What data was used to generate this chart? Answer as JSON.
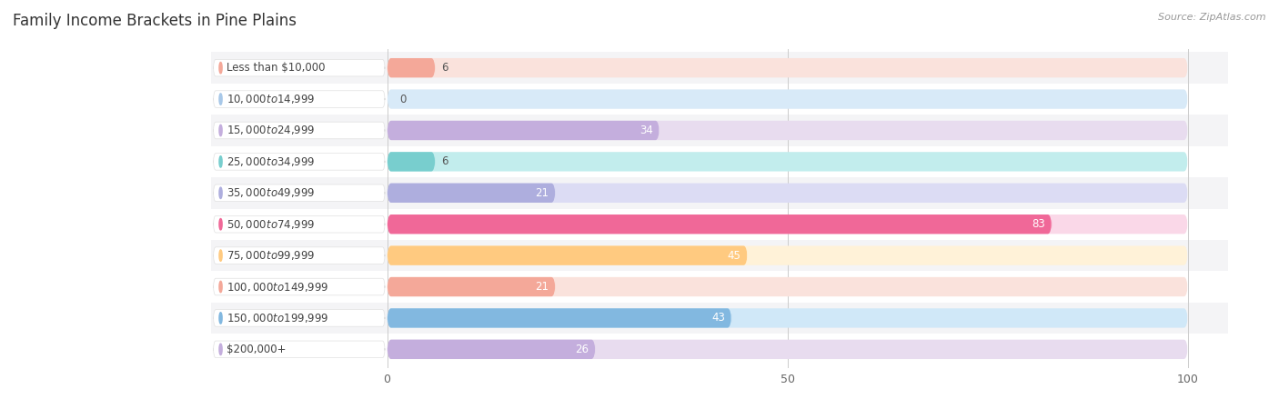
{
  "title": "Family Income Brackets in Pine Plains",
  "source": "Source: ZipAtlas.com",
  "categories": [
    "Less than $10,000",
    "$10,000 to $14,999",
    "$15,000 to $24,999",
    "$25,000 to $34,999",
    "$35,000 to $49,999",
    "$50,000 to $74,999",
    "$75,000 to $99,999",
    "$100,000 to $149,999",
    "$150,000 to $199,999",
    "$200,000+"
  ],
  "values": [
    6,
    0,
    34,
    6,
    21,
    83,
    45,
    21,
    43,
    26
  ],
  "bar_colors": [
    "#F4A899",
    "#A8C8E8",
    "#C4AEDD",
    "#78CECE",
    "#AEAEDE",
    "#F06898",
    "#FFCA80",
    "#F4A899",
    "#82B8E0",
    "#C4AEDD"
  ],
  "bar_bg_colors": [
    "#FAE2DC",
    "#D8EAF8",
    "#E8DCEF",
    "#C2EDED",
    "#DCDCF4",
    "#FAD8E8",
    "#FFF2D8",
    "#FAE2DC",
    "#D0E8F8",
    "#E8DCEF"
  ],
  "row_bg_colors": [
    "#f4f4f6",
    "#ffffff",
    "#f4f4f6",
    "#ffffff",
    "#f4f4f6",
    "#ffffff",
    "#f4f4f6",
    "#ffffff",
    "#f4f4f6",
    "#ffffff"
  ],
  "xlim": [
    0,
    100
  ],
  "xticks": [
    0,
    50,
    100
  ],
  "background_color": "#ffffff",
  "title_fontsize": 12,
  "label_fontsize": 8.5,
  "value_fontsize": 8.5,
  "value_color_inside": "#ffffff",
  "value_color_outside": "#555555"
}
